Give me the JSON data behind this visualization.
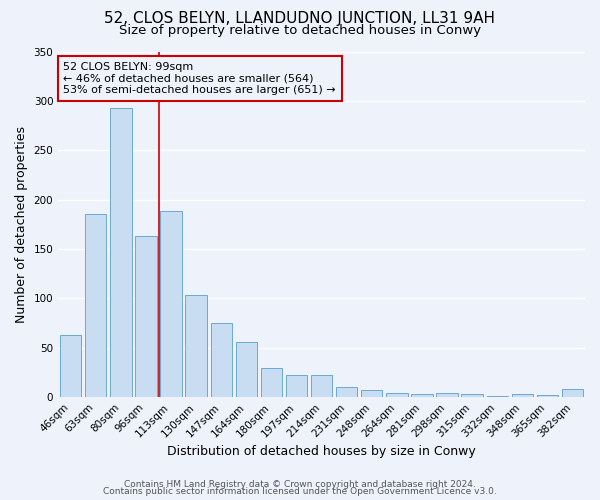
{
  "title": "52, CLOS BELYN, LLANDUDNO JUNCTION, LL31 9AH",
  "subtitle": "Size of property relative to detached houses in Conwy",
  "xlabel": "Distribution of detached houses by size in Conwy",
  "ylabel": "Number of detached properties",
  "footer_lines": [
    "Contains HM Land Registry data © Crown copyright and database right 2024.",
    "Contains public sector information licensed under the Open Government Licence v3.0."
  ],
  "categories": [
    "46sqm",
    "63sqm",
    "80sqm",
    "96sqm",
    "113sqm",
    "130sqm",
    "147sqm",
    "164sqm",
    "180sqm",
    "197sqm",
    "214sqm",
    "231sqm",
    "248sqm",
    "264sqm",
    "281sqm",
    "298sqm",
    "315sqm",
    "332sqm",
    "348sqm",
    "365sqm",
    "382sqm"
  ],
  "values": [
    63,
    185,
    293,
    163,
    189,
    103,
    75,
    56,
    30,
    23,
    23,
    10,
    7,
    4,
    3,
    4,
    3,
    1,
    3,
    2,
    8
  ],
  "bar_color": "#c9ddf2",
  "bar_edge_color": "#6aaad4",
  "vline_color": "#cc0000",
  "vline_index": 3.5,
  "annotation_text": "52 CLOS BELYN: 99sqm\n← 46% of detached houses are smaller (564)\n53% of semi-detached houses are larger (651) →",
  "annotation_box_edge": "#cc0000",
  "ylim": [
    0,
    350
  ],
  "yticks": [
    0,
    50,
    100,
    150,
    200,
    250,
    300,
    350
  ],
  "background_color": "#eef2fb",
  "grid_color": "#ffffff",
  "title_fontsize": 11,
  "subtitle_fontsize": 9.5,
  "axis_label_fontsize": 9,
  "tick_fontsize": 7.5,
  "footer_fontsize": 6.5
}
